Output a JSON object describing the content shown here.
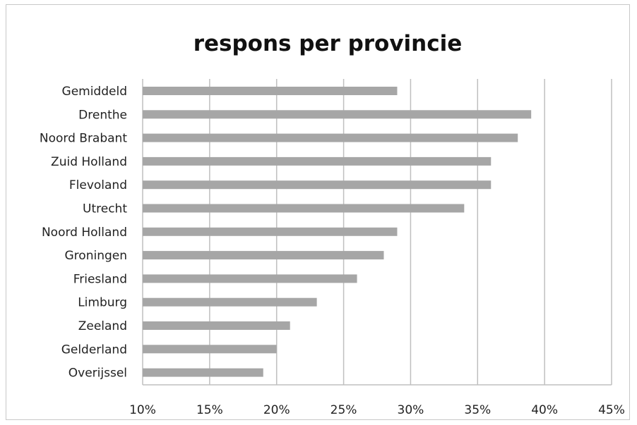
{
  "chart_data": {
    "type": "bar",
    "orientation": "horizontal",
    "title": "respons per provincie",
    "categories": [
      "Gemiddeld",
      "Drenthe",
      "Noord Brabant",
      "Zuid Holland",
      "Flevoland",
      "Utrecht",
      "Noord Holland",
      "Groningen",
      "Friesland",
      "Limburg",
      "Zeeland",
      "Gelderland",
      "Overijssel"
    ],
    "values": [
      29,
      39,
      38,
      36,
      36,
      34,
      29,
      28,
      26,
      23,
      21,
      20,
      19
    ],
    "xlim": [
      10,
      45
    ],
    "xticks": [
      "10%",
      "15%",
      "20%",
      "25%",
      "30%",
      "35%",
      "40%",
      "45%"
    ],
    "xtick_values": [
      10,
      15,
      20,
      25,
      30,
      35,
      40,
      45
    ],
    "grid": "vertical",
    "legend": "none",
    "bar_color": "#a6a6a6",
    "grid_color": "#bfbfbf"
  }
}
